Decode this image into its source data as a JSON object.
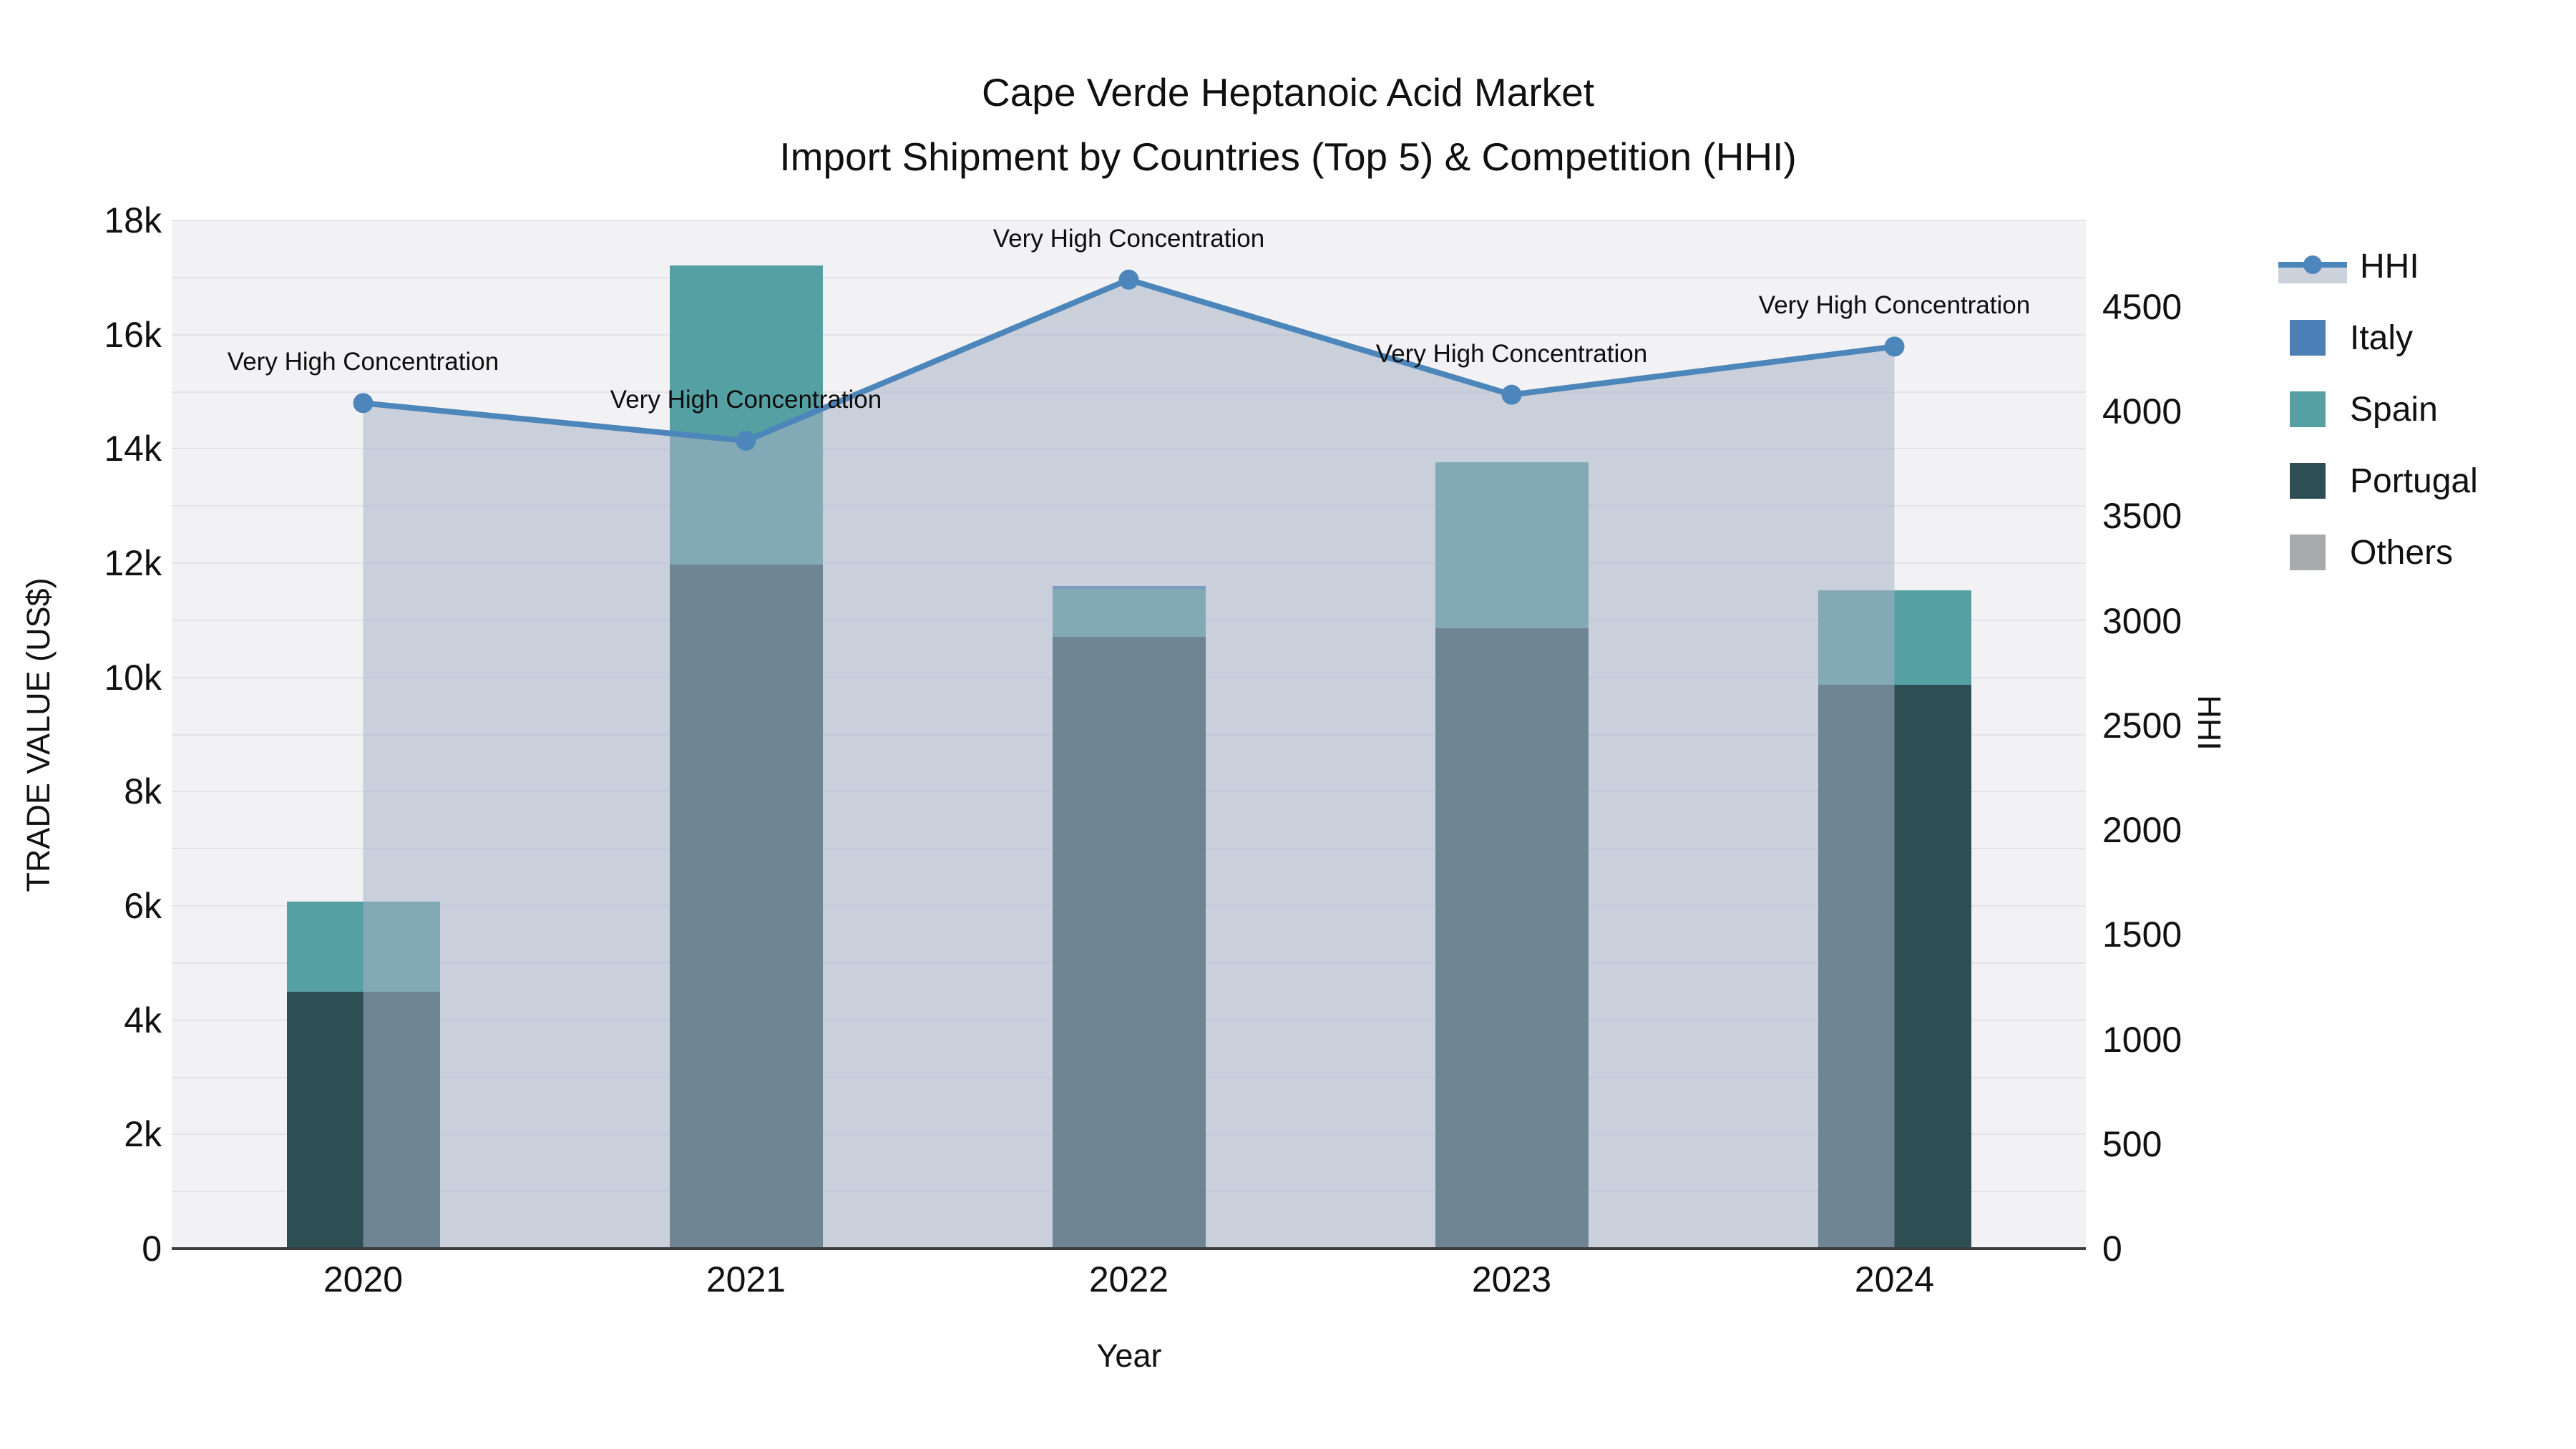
{
  "title": {
    "line1": "Cape Verde Heptanoic Acid Market",
    "line2": "Import Shipment by Countries (Top 5) & Competition (HHI)"
  },
  "axes": {
    "left": {
      "title": "TRADE VALUE (US$)",
      "tick_labels": [
        "0",
        "2k",
        "4k",
        "6k",
        "8k",
        "10k",
        "12k",
        "14k",
        "16k",
        "18k"
      ],
      "tick_values": [
        0,
        2000,
        4000,
        6000,
        8000,
        10000,
        12000,
        14000,
        16000,
        18000
      ],
      "max": 18000
    },
    "right": {
      "title": "HHI",
      "tick_labels": [
        "0",
        "500",
        "1000",
        "1500",
        "2000",
        "2500",
        "3000",
        "3500",
        "4000",
        "4500"
      ],
      "tick_values": [
        0,
        500,
        1000,
        1500,
        2000,
        2500,
        3000,
        3500,
        4000,
        4500
      ],
      "max": 4913
    },
    "x": {
      "title": "Year",
      "tick_labels": [
        "2020",
        "2021",
        "2022",
        "2023",
        "2024"
      ]
    }
  },
  "legend": {
    "items": [
      {
        "label": "HHI",
        "type": "line"
      },
      {
        "label": "Italy",
        "type": "swatch",
        "color": "#4a80b5"
      },
      {
        "label": "Spain",
        "type": "swatch",
        "color": "#55a0a3"
      },
      {
        "label": "Portugal",
        "type": "swatch",
        "color": "#2d4f54"
      },
      {
        "label": "Others",
        "type": "swatch",
        "color": "#a8aaad"
      }
    ]
  },
  "colors": {
    "plot_bg": "#f2f2f4",
    "gridline": "#e4e4e8",
    "hhi_line": "#4d86ba",
    "hhi_area": "rgba(168,178,198,0.55)",
    "axis_line": "#3d3d3d"
  },
  "chart_data": {
    "type": "bar",
    "subtype": "stacked bars (left axis) + line with area fill (right axis)",
    "title": "Cape Verde Heptanoic Acid Market — Import Shipment by Countries (Top 5) & Competition (HHI)",
    "xlabel": "Year",
    "ylabel_left": "TRADE VALUE (US$)",
    "ylabel_right": "HHI",
    "ylim_left": [
      0,
      18000
    ],
    "ylim_right": [
      0,
      4913
    ],
    "grid": "horizontal, every 1000 (left axis)",
    "legend_position": "right",
    "categories": [
      "2020",
      "2021",
      "2022",
      "2023",
      "2024"
    ],
    "series": [
      {
        "name": "Italy",
        "type": "bar",
        "color": "#4a80b5",
        "values": [
          0,
          0,
          50,
          0,
          0
        ]
      },
      {
        "name": "Spain",
        "type": "bar",
        "color": "#55a0a3",
        "values": [
          1570,
          5230,
          840,
          2900,
          1650
        ]
      },
      {
        "name": "Portugal",
        "type": "bar",
        "color": "#2d4f54",
        "values": [
          4500,
          11980,
          10710,
          10860,
          9870
        ]
      },
      {
        "name": "Others",
        "type": "bar",
        "color": "#a8aaad",
        "values": [
          0,
          0,
          0,
          0,
          0
        ]
      },
      {
        "name": "HHI",
        "type": "line+area",
        "axis": "right",
        "color": "#4d86ba",
        "area_color": "rgba(168,178,198,0.55)",
        "values": [
          4040,
          3860,
          4630,
          4080,
          4310
        ]
      }
    ],
    "stack_order": [
      "Portugal",
      "Spain",
      "Italy",
      "Others"
    ],
    "bar_totals": [
      6070,
      17210,
      11600,
      13760,
      11520
    ],
    "point_annotations": [
      "Very High Concentration",
      "Very High Concentration",
      "Very High Concentration",
      "Very High Concentration",
      "Very High Concentration"
    ]
  }
}
